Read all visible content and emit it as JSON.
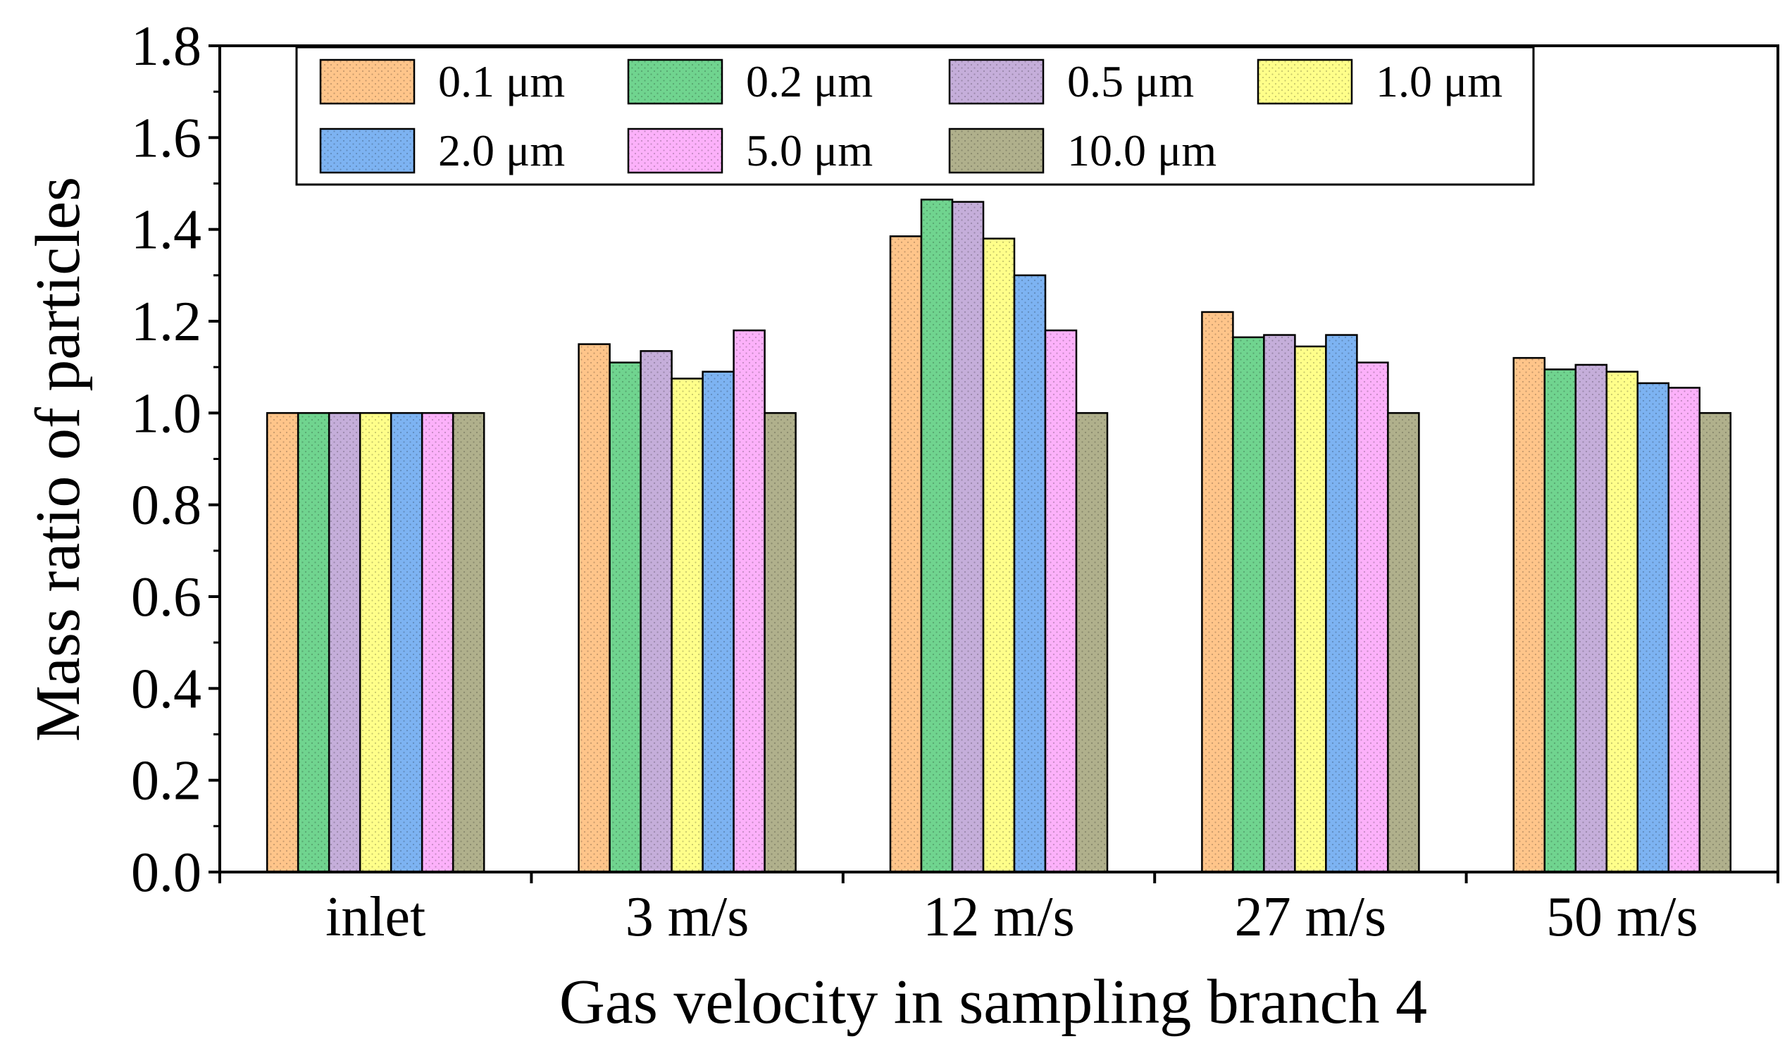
{
  "chart_data": {
    "type": "bar",
    "title": "",
    "xlabel": "Gas velocity in sampling branch 4",
    "ylabel": "Mass ratio of particles",
    "ylim": [
      0.0,
      1.8
    ],
    "yticks": [
      "0.0",
      "0.2",
      "0.4",
      "0.6",
      "0.8",
      "1.0",
      "1.2",
      "1.4",
      "1.6",
      "1.8"
    ],
    "ytick_values": [
      0.0,
      0.2,
      0.4,
      0.6,
      0.8,
      1.0,
      1.2,
      1.4,
      1.6,
      1.8
    ],
    "categories": [
      "inlet",
      "3 m/s",
      "12 m/s",
      "27 m/s",
      "50 m/s"
    ],
    "legend_position": "top",
    "grid": false,
    "series": [
      {
        "name": "0.1 μm",
        "color": "#FFC58A",
        "values": [
          1.0,
          1.15,
          1.385,
          1.22,
          1.12
        ]
      },
      {
        "name": "0.2 μm",
        "color": "#70D48F",
        "values": [
          1.0,
          1.11,
          1.465,
          1.165,
          1.095
        ]
      },
      {
        "name": "0.5 μm",
        "color": "#C5AEDA",
        "values": [
          1.0,
          1.135,
          1.46,
          1.17,
          1.105
        ]
      },
      {
        "name": "1.0 μm",
        "color": "#FFFF8A",
        "values": [
          1.0,
          1.075,
          1.38,
          1.145,
          1.09
        ]
      },
      {
        "name": "2.0 μm",
        "color": "#7DB3F2",
        "values": [
          1.0,
          1.09,
          1.3,
          1.17,
          1.065
        ]
      },
      {
        "name": "5.0 μm",
        "color": "#FCB1FA",
        "values": [
          1.0,
          1.18,
          1.18,
          1.11,
          1.055
        ]
      },
      {
        "name": "10.0 μm",
        "color": "#B0B08C",
        "values": [
          1.0,
          1.0,
          1.0,
          1.0,
          1.0
        ]
      }
    ]
  }
}
